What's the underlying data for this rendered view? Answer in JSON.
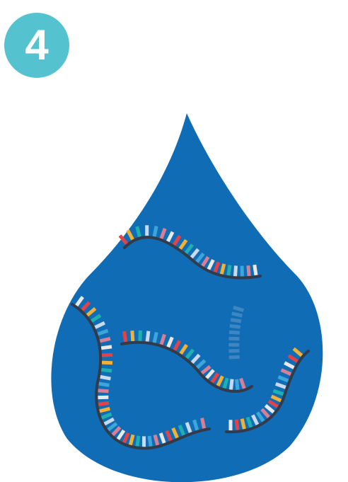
{
  "step": {
    "number": "4",
    "badge_color": "#54C3CF",
    "text_color": "#FFFFFF"
  },
  "illustration": {
    "drop_color": "#0F6CB5",
    "strand_color": "#333A4A",
    "base_colors": [
      "#E2434B",
      "#F2B134",
      "#1FAFB0",
      "#C9D9EE",
      "#3DA5D9",
      "#D87F96",
      "#E9E9E9"
    ],
    "faded_base_color": "#3E86C2",
    "icons": [
      "water-drop-icon",
      "dna-strand-icon"
    ]
  }
}
